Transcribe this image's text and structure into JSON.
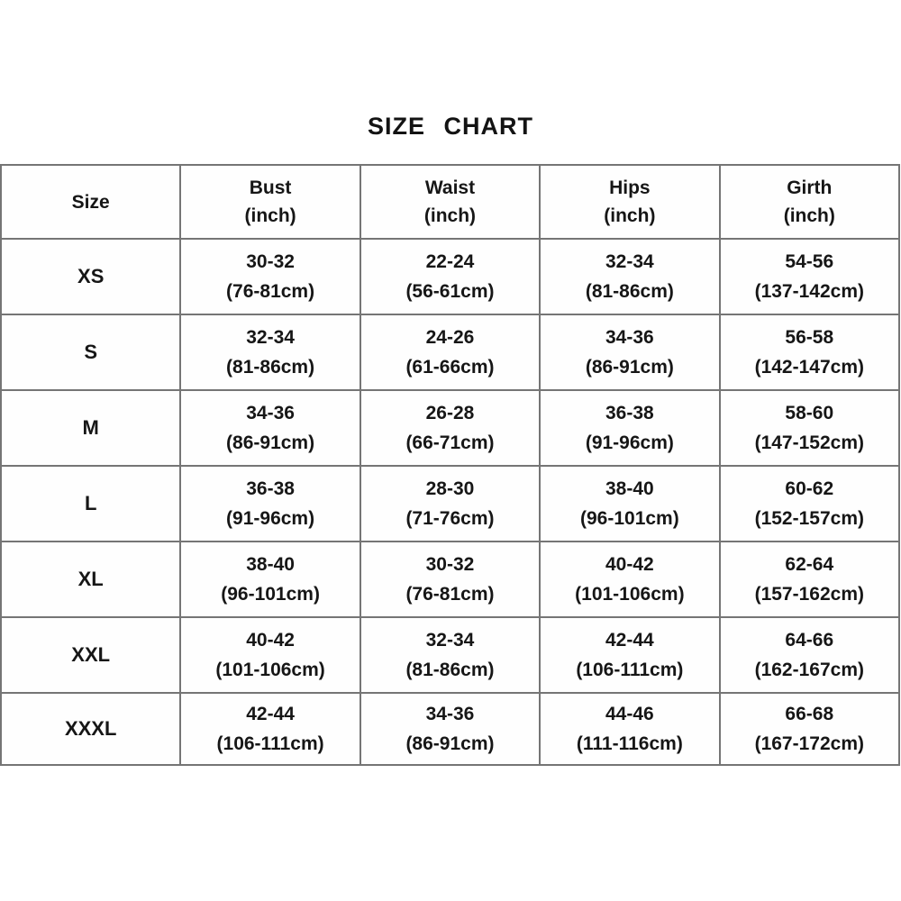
{
  "title": "SIZE CHART",
  "colors": {
    "background": "#ffffff",
    "border": "#757575",
    "text": "#161616"
  },
  "chart_data": {
    "type": "table",
    "title": "SIZE CHART",
    "columns": [
      {
        "label": "Size",
        "unit": ""
      },
      {
        "label": "Bust",
        "unit": "(inch)"
      },
      {
        "label": "Waist",
        "unit": "(inch)"
      },
      {
        "label": "Hips",
        "unit": "(inch)"
      },
      {
        "label": "Girth",
        "unit": "(inch)"
      }
    ],
    "rows": [
      {
        "size": "XS",
        "bust": {
          "inch": "30-32",
          "cm": "(76-81cm)"
        },
        "waist": {
          "inch": "22-24",
          "cm": "(56-61cm)"
        },
        "hips": {
          "inch": "32-34",
          "cm": "(81-86cm)"
        },
        "girth": {
          "inch": "54-56",
          "cm": "(137-142cm)"
        }
      },
      {
        "size": "S",
        "bust": {
          "inch": "32-34",
          "cm": "(81-86cm)"
        },
        "waist": {
          "inch": "24-26",
          "cm": "(61-66cm)"
        },
        "hips": {
          "inch": "34-36",
          "cm": "(86-91cm)"
        },
        "girth": {
          "inch": "56-58",
          "cm": "(142-147cm)"
        }
      },
      {
        "size": "M",
        "bust": {
          "inch": "34-36",
          "cm": "(86-91cm)"
        },
        "waist": {
          "inch": "26-28",
          "cm": "(66-71cm)"
        },
        "hips": {
          "inch": "36-38",
          "cm": "(91-96cm)"
        },
        "girth": {
          "inch": "58-60",
          "cm": "(147-152cm)"
        }
      },
      {
        "size": "L",
        "bust": {
          "inch": "36-38",
          "cm": "(91-96cm)"
        },
        "waist": {
          "inch": "28-30",
          "cm": "(71-76cm)"
        },
        "hips": {
          "inch": "38-40",
          "cm": "(96-101cm)"
        },
        "girth": {
          "inch": "60-62",
          "cm": "(152-157cm)"
        }
      },
      {
        "size": "XL",
        "bust": {
          "inch": "38-40",
          "cm": "(96-101cm)"
        },
        "waist": {
          "inch": "30-32",
          "cm": "(76-81cm)"
        },
        "hips": {
          "inch": "40-42",
          "cm": "(101-106cm)"
        },
        "girth": {
          "inch": "62-64",
          "cm": "(157-162cm)"
        }
      },
      {
        "size": "XXL",
        "bust": {
          "inch": "40-42",
          "cm": "(101-106cm)"
        },
        "waist": {
          "inch": "32-34",
          "cm": "(81-86cm)"
        },
        "hips": {
          "inch": "42-44",
          "cm": "(106-111cm)"
        },
        "girth": {
          "inch": "64-66",
          "cm": "(162-167cm)"
        }
      },
      {
        "size": "XXXL",
        "bust": {
          "inch": "42-44",
          "cm": "(106-111cm)"
        },
        "waist": {
          "inch": "34-36",
          "cm": "(86-91cm)"
        },
        "hips": {
          "inch": "44-46",
          "cm": "(111-116cm)"
        },
        "girth": {
          "inch": "66-68",
          "cm": "(167-172cm)"
        }
      }
    ]
  }
}
